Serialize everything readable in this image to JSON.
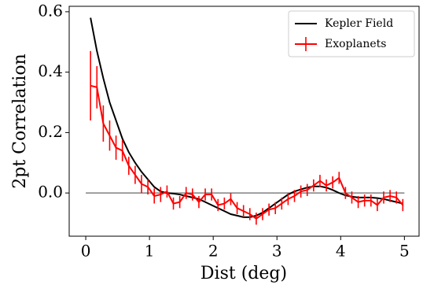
{
  "chart_data": {
    "type": "line",
    "xlabel": "Dist (deg)",
    "ylabel": "2pt Correlation",
    "xlim": [
      -0.26,
      5.23
    ],
    "ylim": [
      -0.143,
      0.618
    ],
    "xticks": [
      0,
      1,
      2,
      3,
      4,
      5
    ],
    "yticks": [
      {
        "value": 0,
        "label": "0.0"
      },
      0.2,
      0.4,
      0.6
    ],
    "legend": "upper right",
    "hlines": [
      {
        "y": 0,
        "xmin": 0,
        "xmax": 5,
        "color": "#808080"
      }
    ],
    "x": [
      0.075,
      0.175,
      0.275,
      0.375,
      0.475,
      0.575,
      0.675,
      0.775,
      0.875,
      0.975,
      1.075,
      1.175,
      1.275,
      1.375,
      1.475,
      1.575,
      1.675,
      1.775,
      1.875,
      1.975,
      2.075,
      2.175,
      2.275,
      2.375,
      2.475,
      2.575,
      2.675,
      2.775,
      2.875,
      2.975,
      3.075,
      3.175,
      3.275,
      3.375,
      3.475,
      3.575,
      3.675,
      3.775,
      3.875,
      3.975,
      4.075,
      4.175,
      4.275,
      4.375,
      4.475,
      4.575,
      4.675,
      4.775,
      4.875,
      4.975
    ],
    "series": [
      {
        "name": "Kepler Field",
        "color": "#000000",
        "values": [
          0.58,
          0.47,
          0.38,
          0.3,
          0.24,
          0.18,
          0.135,
          0.1,
          0.07,
          0.045,
          0.02,
          0.005,
          0.0,
          -0.002,
          -0.005,
          -0.01,
          -0.015,
          -0.02,
          -0.03,
          -0.04,
          -0.05,
          -0.06,
          -0.07,
          -0.075,
          -0.08,
          -0.08,
          -0.075,
          -0.065,
          -0.05,
          -0.035,
          -0.02,
          -0.005,
          0.005,
          0.012,
          0.018,
          0.022,
          0.022,
          0.018,
          0.01,
          0.0,
          -0.008,
          -0.012,
          -0.015,
          -0.015,
          -0.015,
          -0.017,
          -0.02,
          -0.025,
          -0.03,
          -0.035
        ]
      },
      {
        "name": "Exoplanets",
        "color": "#ff0000",
        "values": [
          0.355,
          0.35,
          0.23,
          0.19,
          0.15,
          0.14,
          0.09,
          0.06,
          0.03,
          0.02,
          -0.01,
          -0.005,
          0.005,
          -0.035,
          -0.03,
          0.0,
          -0.005,
          -0.03,
          -0.005,
          -0.005,
          -0.04,
          -0.035,
          -0.02,
          -0.05,
          -0.06,
          -0.07,
          -0.085,
          -0.07,
          -0.055,
          -0.05,
          -0.035,
          -0.02,
          -0.01,
          0.005,
          0.01,
          0.025,
          0.04,
          0.025,
          0.035,
          0.05,
          0.0,
          -0.015,
          -0.03,
          -0.025,
          -0.025,
          -0.04,
          -0.015,
          -0.01,
          -0.015,
          -0.04
        ],
        "errors": [
          0.115,
          0.07,
          0.06,
          0.05,
          0.04,
          0.035,
          0.03,
          0.03,
          0.03,
          0.025,
          0.025,
          0.025,
          0.02,
          0.02,
          0.02,
          0.02,
          0.02,
          0.02,
          0.02,
          0.02,
          0.02,
          0.02,
          0.02,
          0.02,
          0.02,
          0.02,
          0.02,
          0.02,
          0.02,
          0.02,
          0.02,
          0.02,
          0.02,
          0.02,
          0.02,
          0.02,
          0.02,
          0.02,
          0.02,
          0.02,
          0.02,
          0.02,
          0.02,
          0.02,
          0.02,
          0.02,
          0.02,
          0.02,
          0.02,
          0.02
        ]
      }
    ]
  }
}
